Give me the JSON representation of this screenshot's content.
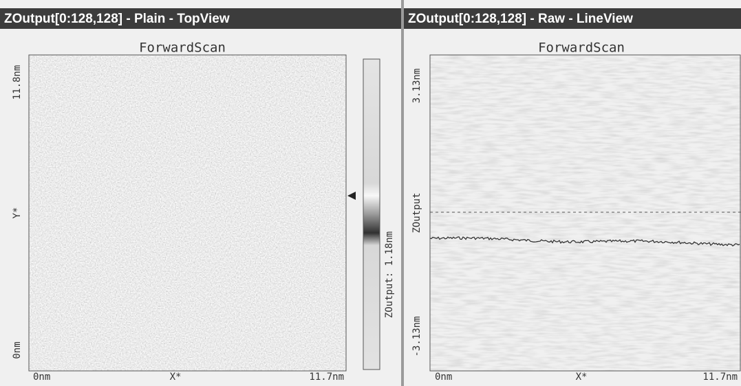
{
  "panels": [
    {
      "title": "ZOutput[0:128,128] - Plain - TopView",
      "plot_title": "ForwardScan",
      "y_labels": [
        "11.8nm",
        "Y*",
        "0nm"
      ],
      "x_labels": [
        "0nm",
        "X*",
        "11.7nm"
      ],
      "colorbar_label": "ZOutput: 1.18nm"
    },
    {
      "title": "ZOutput[0:128,128] - Raw - LineView",
      "plot_title": "ForwardScan",
      "y_labels": [
        "3.13nm",
        "ZOutput",
        "-3.13nm"
      ],
      "x_labels": [
        "0nm",
        "X*",
        "11.7nm"
      ]
    }
  ]
}
